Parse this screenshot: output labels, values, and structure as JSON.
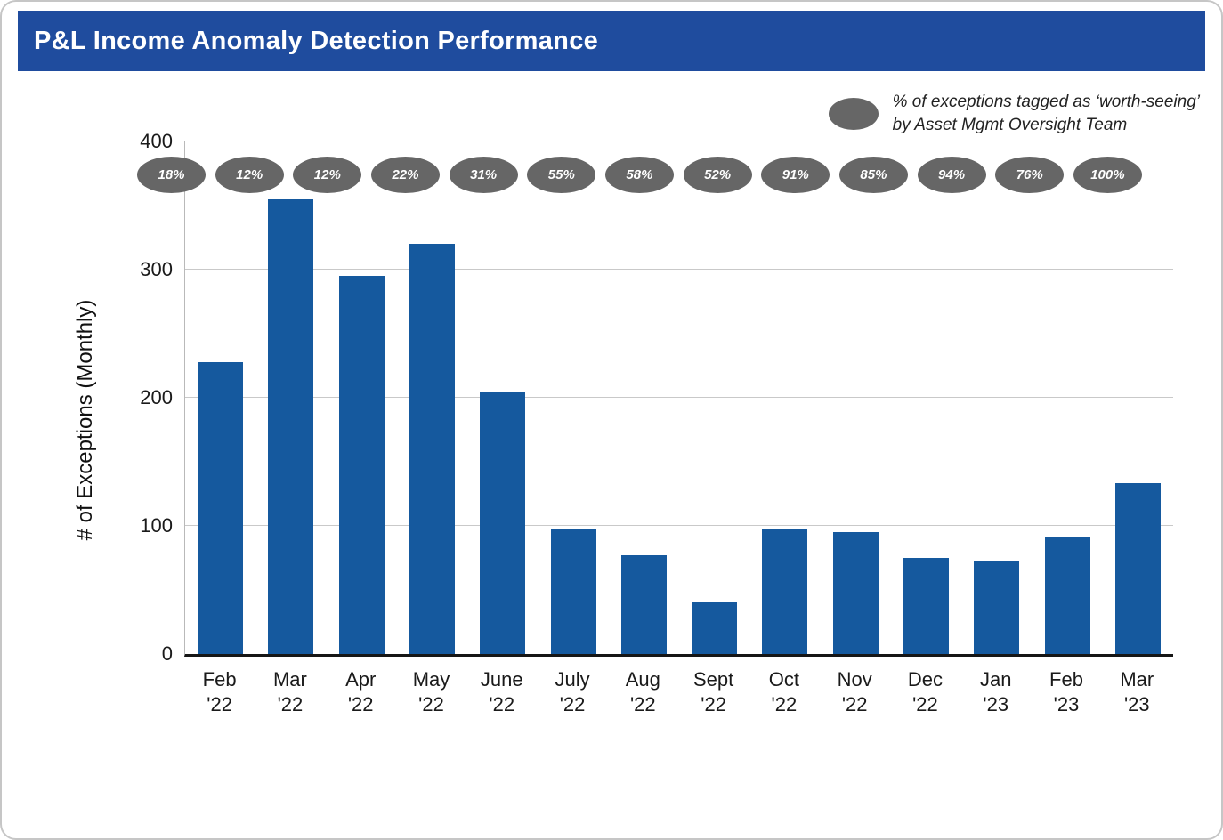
{
  "header": {
    "title": "P&L Income Anomaly Detection Performance"
  },
  "chart_data": {
    "type": "bar",
    "title": "P&L Income Anomaly Detection Performance",
    "categories": [
      "Feb '22",
      "Mar '22",
      "Apr '22",
      "May '22",
      "June '22",
      "July '22",
      "Aug '22",
      "Sept '22",
      "Oct '22",
      "Nov '22",
      "Dec '22",
      "Jan '23",
      "Feb '23",
      "Mar '23"
    ],
    "values": [
      228,
      355,
      295,
      320,
      204,
      97,
      77,
      40,
      97,
      95,
      75,
      72,
      92,
      133
    ],
    "badge_percentages": [
      "18%",
      "12%",
      "12%",
      "22%",
      "31%",
      "55%",
      "58%",
      "52%",
      "91%",
      "85%",
      "94%",
      "76%",
      "100%"
    ],
    "legend": {
      "line1": "% of exceptions tagged as ‘worth-seeing’",
      "line2": "by Asset Mgmt Oversight Team"
    },
    "legend_position": "top-right",
    "xlabel": "",
    "ylabel": "# of Exceptions (Monthly)",
    "ylim": [
      0,
      400
    ],
    "yticks": [
      0,
      100,
      200,
      300,
      400
    ],
    "grid": true,
    "bar_color": "#15599E",
    "badge_color": "#666666",
    "header_color": "#1F4C9E"
  }
}
